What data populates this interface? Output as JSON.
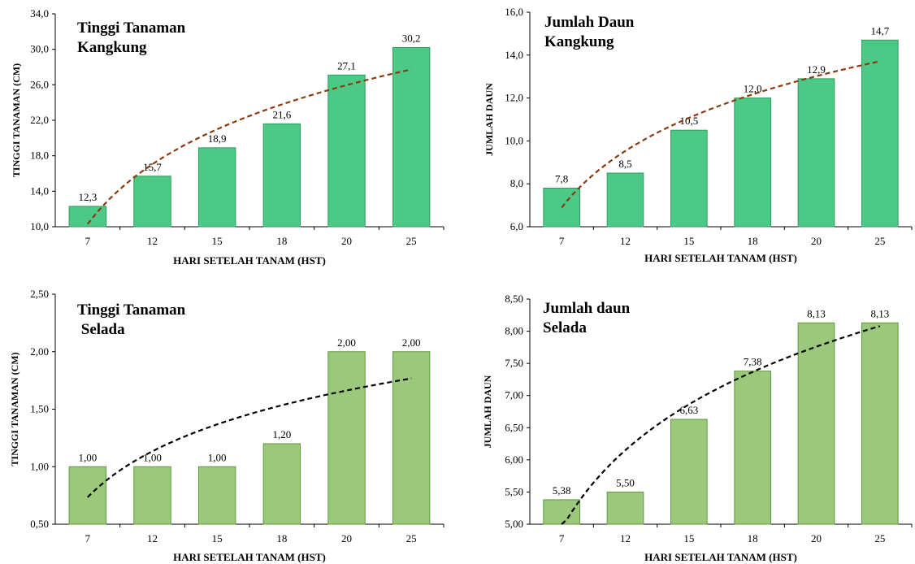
{
  "chart_data": [
    {
      "type": "bar",
      "title_lines": [
        "Tinggi Tanaman",
        "Kangkung"
      ],
      "xlabel": "HARI SETELAH TANAM (HST)",
      "ylabel": "TINGGI TANAMAN (CM)",
      "categories": [
        "7",
        "12",
        "15",
        "18",
        "20",
        "25"
      ],
      "values": [
        12.3,
        15.7,
        18.9,
        21.6,
        27.1,
        30.2
      ],
      "value_labels": [
        "12,3",
        "15,7",
        "18,9",
        "21,6",
        "27,1",
        "30,2"
      ],
      "ylim": [
        10,
        34
      ],
      "yticks": [
        10,
        14,
        18,
        22,
        26,
        30,
        34
      ],
      "ytick_labels": [
        "10,0",
        "14,0",
        "18,0",
        "22,0",
        "26,0",
        "30,0",
        "34,0"
      ],
      "trendline": "logarithmic",
      "bar_color": "#4cc987",
      "bar_edge": "#2e9e5c",
      "trend_color": "#8b3a0e"
    },
    {
      "type": "bar",
      "title_lines": [
        "Jumlah Daun",
        "Kangkung"
      ],
      "xlabel": "HARI SETELAH TANAM (HST)",
      "ylabel": "JUMLAH DAUN",
      "categories": [
        "7",
        "12",
        "15",
        "18",
        "20",
        "25"
      ],
      "values": [
        7.8,
        8.5,
        10.5,
        12.0,
        12.9,
        14.7
      ],
      "value_labels": [
        "7,8",
        "8,5",
        "10,5",
        "12,0",
        "12,9",
        "14,7"
      ],
      "ylim": [
        6,
        16
      ],
      "yticks": [
        6,
        8,
        10,
        12,
        14,
        16
      ],
      "ytick_labels": [
        "6,0",
        "8,0",
        "10,0",
        "12,0",
        "14,0",
        "16,0"
      ],
      "trendline": "logarithmic",
      "bar_color": "#4cc987",
      "bar_edge": "#2e9e5c",
      "trend_color": "#8b3a0e"
    },
    {
      "type": "bar",
      "title_lines": [
        "Tinggi Tanaman",
        " Selada"
      ],
      "xlabel": "HARI SETELAH TANAM (HST)",
      "ylabel": "TINGGI TANAMAN (CM)",
      "categories": [
        "7",
        "12",
        "15",
        "18",
        "20",
        "25"
      ],
      "values": [
        1.0,
        1.0,
        1.0,
        1.2,
        2.0,
        2.0
      ],
      "value_labels": [
        "1,00",
        "1,00",
        "1,00",
        "1,20",
        "2,00",
        "2,00"
      ],
      "ylim": [
        0.5,
        2.5
      ],
      "yticks": [
        0.5,
        1.0,
        1.5,
        2.0,
        2.5
      ],
      "ytick_labels": [
        "0,50",
        "1,00",
        "1,50",
        "2,00",
        "2,50"
      ],
      "trendline": "logarithmic",
      "bar_color": "#9bc87a",
      "bar_edge": "#5e9a3e",
      "trend_color": "#000000"
    },
    {
      "type": "bar",
      "title_lines": [
        "Jumlah daun",
        "Selada"
      ],
      "xlabel": "HARI SETELAH TANAM (HST)",
      "ylabel": "JUMLAH DAUN",
      "categories": [
        "7",
        "12",
        "15",
        "18",
        "20",
        "25"
      ],
      "values": [
        5.38,
        5.5,
        6.63,
        7.38,
        8.13,
        8.13
      ],
      "value_labels": [
        "5,38",
        "5,50",
        "6,63",
        "7,38",
        "8,13",
        "8,13"
      ],
      "ylim": [
        5.0,
        8.5
      ],
      "yticks": [
        5.0,
        5.5,
        6.0,
        6.5,
        7.0,
        7.5,
        8.0,
        8.5
      ],
      "ytick_labels": [
        "5,00",
        "5,50",
        "6,00",
        "6,50",
        "7,00",
        "7,50",
        "8,00",
        "8,50"
      ],
      "trendline": "logarithmic",
      "bar_color": "#9bc87a",
      "bar_edge": "#5e9a3e",
      "trend_color": "#000000"
    }
  ]
}
